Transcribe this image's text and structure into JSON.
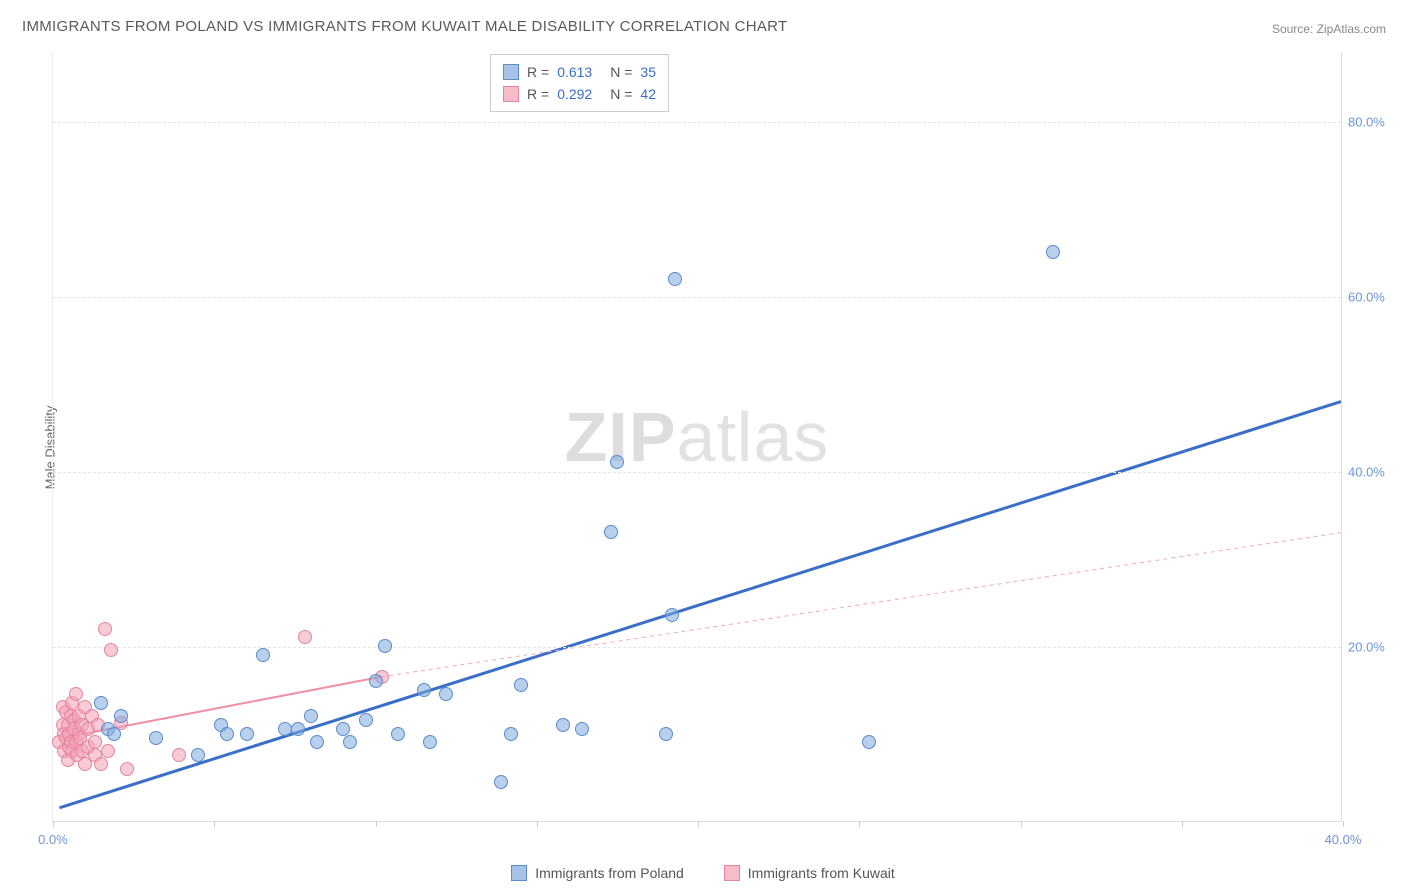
{
  "title": "IMMIGRANTS FROM POLAND VS IMMIGRANTS FROM KUWAIT MALE DISABILITY CORRELATION CHART",
  "source": "Source: ZipAtlas.com",
  "watermark_a": "ZIP",
  "watermark_b": "atlas",
  "ylabel": "Male Disability",
  "chart": {
    "type": "scatter",
    "xlim": [
      0,
      40
    ],
    "ylim": [
      0,
      88
    ],
    "yticks": [
      20,
      40,
      60,
      80
    ],
    "ytick_labels": [
      "20.0%",
      "40.0%",
      "60.0%",
      "80.0%"
    ],
    "xtick_positions": [
      0,
      5,
      10,
      15,
      20,
      25,
      30,
      35,
      40
    ],
    "xtick_labels": {
      "0": "0.0%",
      "40": "40.0%"
    },
    "colors": {
      "blue": "#6d9bd8",
      "pink": "#ef8fa8",
      "grid": "#e5e5e5",
      "axis": "#dddddd",
      "tick_text": "#6b96d6",
      "background": "#ffffff"
    },
    "legend_series": [
      {
        "label": "Immigrants from Poland",
        "color": "blue"
      },
      {
        "label": "Immigrants from Kuwait",
        "color": "pink"
      }
    ],
    "legend_stats": [
      {
        "color": "blue",
        "r": "0.613",
        "n": "35"
      },
      {
        "color": "pink",
        "r": "0.292",
        "n": "42"
      }
    ],
    "trend_lines": [
      {
        "color": "#3b6fc7",
        "width": 3,
        "dash": "",
        "x1": 0.2,
        "y1": 1.5,
        "x2": 40,
        "y2": 48
      },
      {
        "color": "#ef8fa8",
        "width": 2,
        "dash": "",
        "x1": 0.3,
        "y1": 9.5,
        "x2": 10.2,
        "y2": 16.5
      },
      {
        "color": "#efaab8",
        "width": 1,
        "dash": "4 4",
        "x1": 10.2,
        "y1": 16.5,
        "x2": 40,
        "y2": 33
      }
    ],
    "points_blue": [
      [
        1.5,
        13.5
      ],
      [
        1.7,
        10.5
      ],
      [
        1.9,
        10
      ],
      [
        2.1,
        12
      ],
      [
        3.2,
        9.5
      ],
      [
        4.5,
        7.5
      ],
      [
        5.2,
        11
      ],
      [
        5.4,
        10
      ],
      [
        6.0,
        10
      ],
      [
        6.5,
        19
      ],
      [
        7.2,
        10.5
      ],
      [
        7.6,
        10.5
      ],
      [
        8.0,
        12
      ],
      [
        8.2,
        9
      ],
      [
        9.0,
        10.5
      ],
      [
        9.2,
        9
      ],
      [
        9.7,
        11.5
      ],
      [
        10.0,
        16
      ],
      [
        10.3,
        20
      ],
      [
        10.7,
        10
      ],
      [
        11.5,
        15
      ],
      [
        11.7,
        9
      ],
      [
        12.2,
        14.5
      ],
      [
        13.9,
        4.5
      ],
      [
        14.2,
        10
      ],
      [
        14.5,
        15.5
      ],
      [
        15.8,
        11
      ],
      [
        16.4,
        10.5
      ],
      [
        17.3,
        33
      ],
      [
        17.5,
        41
      ],
      [
        19.0,
        10
      ],
      [
        19.2,
        23.5
      ],
      [
        19.3,
        62
      ],
      [
        25.3,
        9
      ],
      [
        31.0,
        65
      ]
    ],
    "points_pink": [
      [
        0.2,
        9
      ],
      [
        0.3,
        11
      ],
      [
        0.3,
        13
      ],
      [
        0.35,
        8
      ],
      [
        0.35,
        10
      ],
      [
        0.4,
        12.5
      ],
      [
        0.4,
        9.5
      ],
      [
        0.45,
        11
      ],
      [
        0.45,
        7
      ],
      [
        0.5,
        8.5
      ],
      [
        0.5,
        10
      ],
      [
        0.55,
        12
      ],
      [
        0.55,
        9
      ],
      [
        0.6,
        13.5
      ],
      [
        0.6,
        8
      ],
      [
        0.65,
        11.5
      ],
      [
        0.65,
        10.5
      ],
      [
        0.7,
        9
      ],
      [
        0.7,
        14.5
      ],
      [
        0.75,
        7.5
      ],
      [
        0.8,
        12
      ],
      [
        0.8,
        10
      ],
      [
        0.85,
        9.5
      ],
      [
        0.9,
        11
      ],
      [
        0.9,
        8
      ],
      [
        1.0,
        13
      ],
      [
        1.0,
        6.5
      ],
      [
        1.1,
        10.5
      ],
      [
        1.1,
        8.5
      ],
      [
        1.2,
        12
      ],
      [
        1.3,
        7.5
      ],
      [
        1.3,
        9
      ],
      [
        1.4,
        11
      ],
      [
        1.5,
        6.5
      ],
      [
        1.6,
        22
      ],
      [
        1.7,
        8
      ],
      [
        1.8,
        19.5
      ],
      [
        2.1,
        11.2
      ],
      [
        2.3,
        6
      ],
      [
        3.9,
        7.5
      ],
      [
        7.8,
        21
      ],
      [
        10.2,
        16.5
      ]
    ]
  }
}
